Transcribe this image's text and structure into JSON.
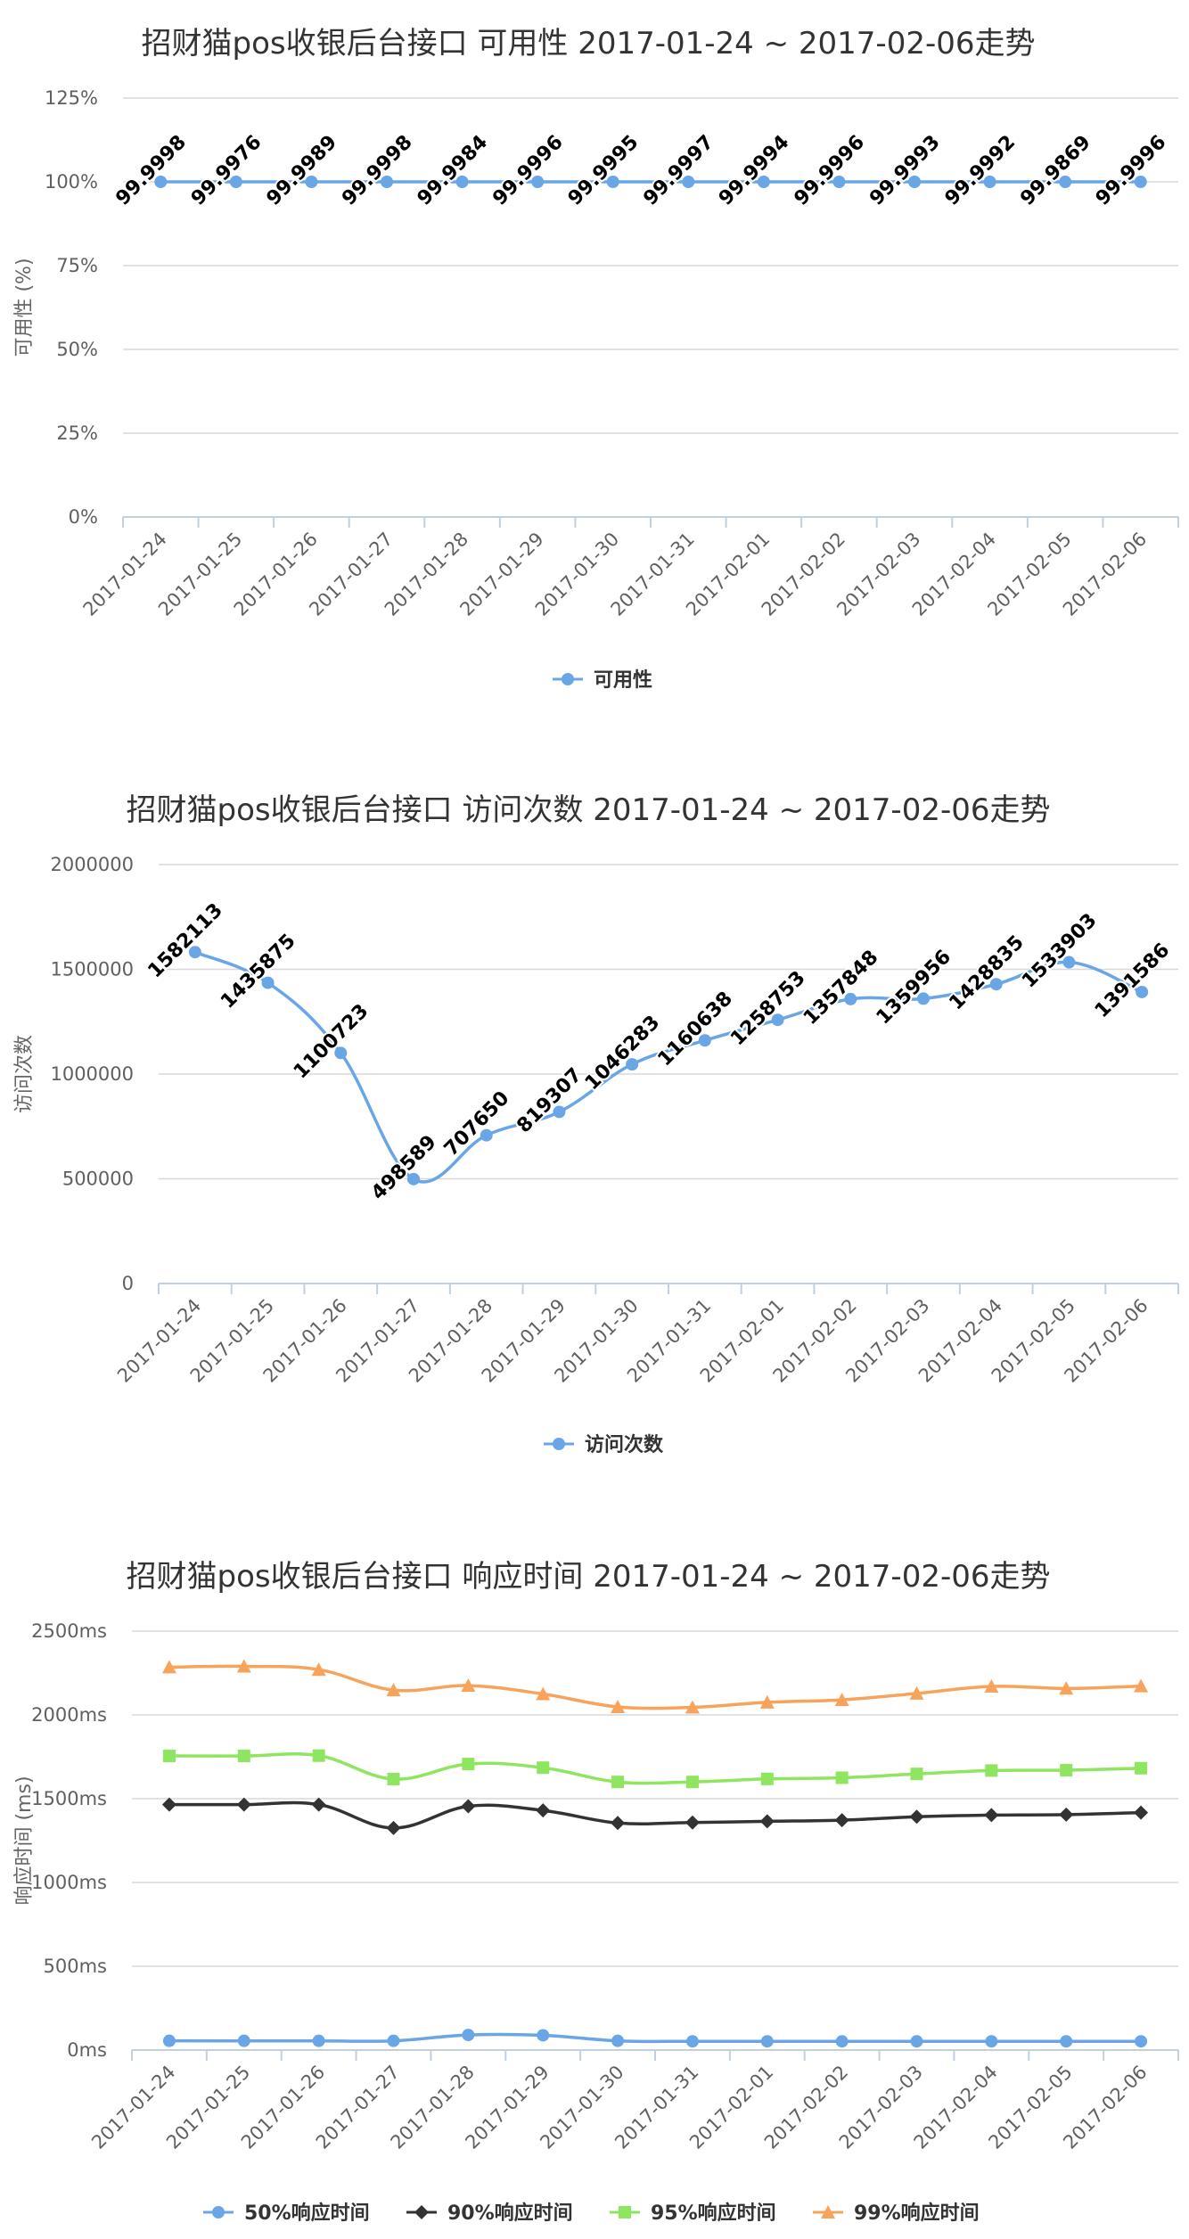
{
  "chart_data": [
    {
      "type": "line",
      "title": "招财猫pos收银后台接口 可用性 2017-01-24 ~ 2017-02-06走势",
      "ylabel": "可用性 (%)",
      "ylim": [
        0,
        125
      ],
      "yticks": [
        "0%",
        "25%",
        "50%",
        "75%",
        "100%",
        "125%"
      ],
      "ytick_values": [
        0,
        25,
        50,
        75,
        100,
        125
      ],
      "categories": [
        "2017-01-24",
        "2017-01-25",
        "2017-01-26",
        "2017-01-27",
        "2017-01-28",
        "2017-01-29",
        "2017-01-30",
        "2017-01-31",
        "2017-02-01",
        "2017-02-02",
        "2017-02-03",
        "2017-02-04",
        "2017-02-05",
        "2017-02-06"
      ],
      "series": [
        {
          "name": "可用性",
          "color": "#6aa5e6",
          "marker": "circle",
          "values": [
            99.9998,
            99.9976,
            99.9989,
            99.9998,
            99.9984,
            99.9996,
            99.9995,
            99.9997,
            99.9994,
            99.9996,
            99.9993,
            99.9992,
            99.9869,
            99.9996
          ]
        }
      ],
      "data_labels": true,
      "grid": true,
      "legend": "bottom-center"
    },
    {
      "type": "line",
      "title": "招财猫pos收银后台接口 访问次数 2017-01-24 ~ 2017-02-06走势",
      "ylabel": "访问次数",
      "ylim": [
        0,
        2000000
      ],
      "yticks": [
        "0",
        "500000",
        "1000000",
        "1500000",
        "2000000"
      ],
      "ytick_values": [
        0,
        500000,
        1000000,
        1500000,
        2000000
      ],
      "categories": [
        "2017-01-24",
        "2017-01-25",
        "2017-01-26",
        "2017-01-27",
        "2017-01-28",
        "2017-01-29",
        "2017-01-30",
        "2017-01-31",
        "2017-02-01",
        "2017-02-02",
        "2017-02-03",
        "2017-02-04",
        "2017-02-05",
        "2017-02-06"
      ],
      "series": [
        {
          "name": "访问次数",
          "color": "#6aa5e6",
          "marker": "circle",
          "values": [
            1582113,
            1435875,
            1100723,
            498589,
            707650,
            819307,
            1046283,
            1160638,
            1258753,
            1357848,
            1359956,
            1428835,
            1533903,
            1391586
          ]
        }
      ],
      "data_labels": true,
      "grid": true,
      "legend": "bottom-center"
    },
    {
      "type": "line",
      "title": "招财猫pos收银后台接口 响应时间 2017-01-24 ~ 2017-02-06走势",
      "ylabel": "响应时间 (ms)",
      "ylim": [
        0,
        2500
      ],
      "yticks": [
        "0ms",
        "500ms",
        "1000ms",
        "1500ms",
        "2000ms",
        "2500ms"
      ],
      "ytick_values": [
        0,
        500,
        1000,
        1500,
        2000,
        2500
      ],
      "categories": [
        "2017-01-24",
        "2017-01-25",
        "2017-01-26",
        "2017-01-27",
        "2017-01-28",
        "2017-01-29",
        "2017-01-30",
        "2017-01-31",
        "2017-02-01",
        "2017-02-02",
        "2017-02-03",
        "2017-02-04",
        "2017-02-05",
        "2017-02-06"
      ],
      "series": [
        {
          "name": "50%响应时间",
          "color": "#6aa5e6",
          "marker": "circle",
          "values": [
            55,
            55,
            55,
            55,
            90,
            88,
            55,
            52,
            52,
            52,
            52,
            52,
            52,
            52
          ]
        },
        {
          "name": "90%响应时间",
          "color": "#333333",
          "marker": "diamond",
          "values": [
            1465,
            1465,
            1465,
            1325,
            1455,
            1430,
            1355,
            1358,
            1365,
            1372,
            1392,
            1402,
            1405,
            1417
          ]
        },
        {
          "name": "95%响应时间",
          "color": "#8ee55f",
          "marker": "square",
          "values": [
            1755,
            1755,
            1757,
            1617,
            1707,
            1685,
            1600,
            1600,
            1618,
            1625,
            1648,
            1668,
            1670,
            1682
          ]
        },
        {
          "name": "99%响应时间",
          "color": "#f7a35c",
          "marker": "triangle",
          "values": [
            2285,
            2290,
            2270,
            2148,
            2175,
            2125,
            2048,
            2045,
            2075,
            2090,
            2128,
            2170,
            2158,
            2172
          ]
        }
      ],
      "data_labels": false,
      "grid": true,
      "legend": "bottom-center"
    }
  ]
}
